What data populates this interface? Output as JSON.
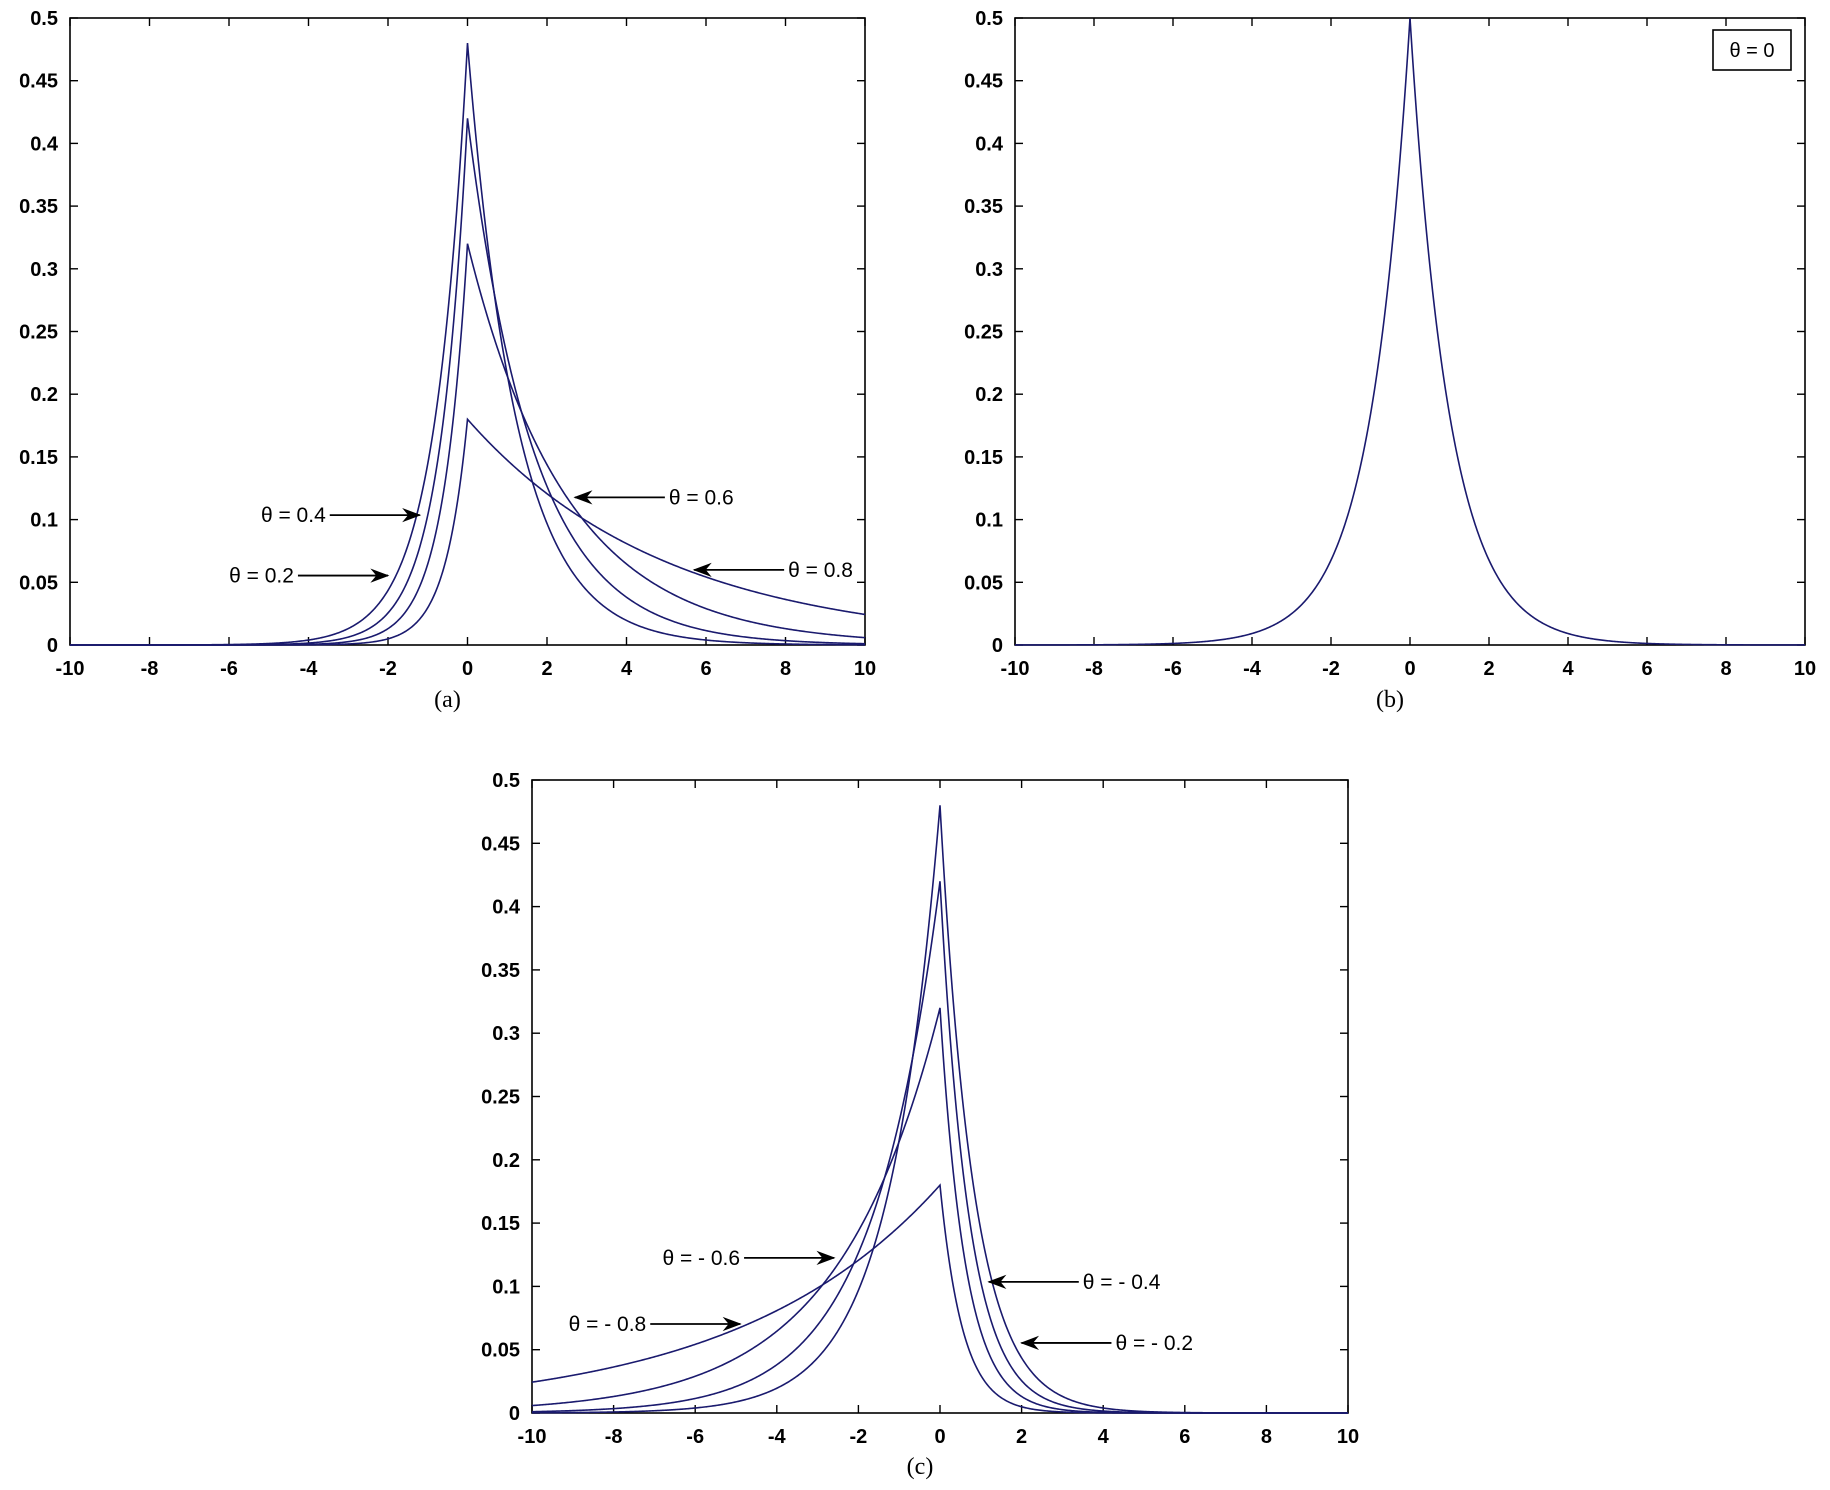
{
  "figure": {
    "line_color": "#1a1a6e",
    "axis_color": "#000000"
  },
  "chart_data": [
    {
      "panel": "(a)",
      "type": "line",
      "xlim": [
        -10,
        10
      ],
      "ylim": [
        0,
        0.5
      ],
      "xticks": [
        "-10",
        "-8",
        "-6",
        "-4",
        "-2",
        "0",
        "2",
        "4",
        "6",
        "8",
        "10"
      ],
      "yticks": [
        "0",
        "0.05",
        "0.1",
        "0.15",
        "0.2",
        "0.25",
        "0.3",
        "0.35",
        "0.4",
        "0.45",
        "0.5"
      ],
      "series": [
        {
          "theta": 0.2,
          "peak": 0.48,
          "left_rate": 1.2,
          "right_rate": 0.8
        },
        {
          "theta": 0.4,
          "peak": 0.42,
          "left_rate": 1.4,
          "right_rate": 0.6
        },
        {
          "theta": 0.6,
          "peak": 0.32,
          "left_rate": 1.6,
          "right_rate": 0.4
        },
        {
          "theta": 0.8,
          "peak": 0.18,
          "left_rate": 1.8,
          "right_rate": 0.2
        }
      ],
      "annotations": [
        {
          "text": "θ = 0.4",
          "series": 1,
          "x_point": -1.0,
          "side": "left"
        },
        {
          "text": "θ = 0.2",
          "series": 0,
          "x_point": -1.8,
          "side": "left"
        },
        {
          "text": "θ = 0.6",
          "series": 2,
          "x_point": 2.5,
          "side": "right"
        },
        {
          "text": "θ = 0.8",
          "series": 3,
          "x_point": 5.5,
          "side": "right"
        }
      ],
      "legend": null
    },
    {
      "panel": "(b)",
      "type": "line",
      "xlim": [
        -10,
        10
      ],
      "ylim": [
        0,
        0.5
      ],
      "xticks": [
        "-10",
        "-8",
        "-6",
        "-4",
        "-2",
        "0",
        "2",
        "4",
        "6",
        "8",
        "10"
      ],
      "yticks": [
        "0",
        "0.05",
        "0.1",
        "0.15",
        "0.2",
        "0.25",
        "0.3",
        "0.35",
        "0.4",
        "0.45",
        "0.5"
      ],
      "series": [
        {
          "theta": 0,
          "peak": 0.5,
          "left_rate": 1.0,
          "right_rate": 1.0
        }
      ],
      "annotations": [],
      "legend": {
        "text": "θ = 0",
        "position": "top-right"
      }
    },
    {
      "panel": "(c)",
      "type": "line",
      "xlim": [
        -10,
        10
      ],
      "ylim": [
        0,
        0.5
      ],
      "xticks": [
        "-10",
        "-8",
        "-6",
        "-4",
        "-2",
        "0",
        "2",
        "4",
        "6",
        "8",
        "10"
      ],
      "yticks": [
        "0",
        "0.05",
        "0.1",
        "0.15",
        "0.2",
        "0.25",
        "0.3",
        "0.35",
        "0.4",
        "0.45",
        "0.5"
      ],
      "series": [
        {
          "theta": -0.2,
          "peak": 0.48,
          "left_rate": 0.8,
          "right_rate": 1.2
        },
        {
          "theta": -0.4,
          "peak": 0.42,
          "left_rate": 0.6,
          "right_rate": 1.4
        },
        {
          "theta": -0.6,
          "peak": 0.32,
          "left_rate": 0.4,
          "right_rate": 1.6
        },
        {
          "theta": -0.8,
          "peak": 0.18,
          "left_rate": 0.2,
          "right_rate": 1.8
        }
      ],
      "annotations": [
        {
          "text": "θ = - 0.6",
          "series": 2,
          "x_point": -2.4,
          "side": "left"
        },
        {
          "text": "θ = - 0.8",
          "series": 3,
          "x_point": -4.7,
          "side": "left"
        },
        {
          "text": "θ = - 0.4",
          "series": 1,
          "x_point": 1.0,
          "side": "right"
        },
        {
          "text": "θ = - 0.2",
          "series": 0,
          "x_point": 1.8,
          "side": "right"
        }
      ],
      "legend": null
    }
  ]
}
